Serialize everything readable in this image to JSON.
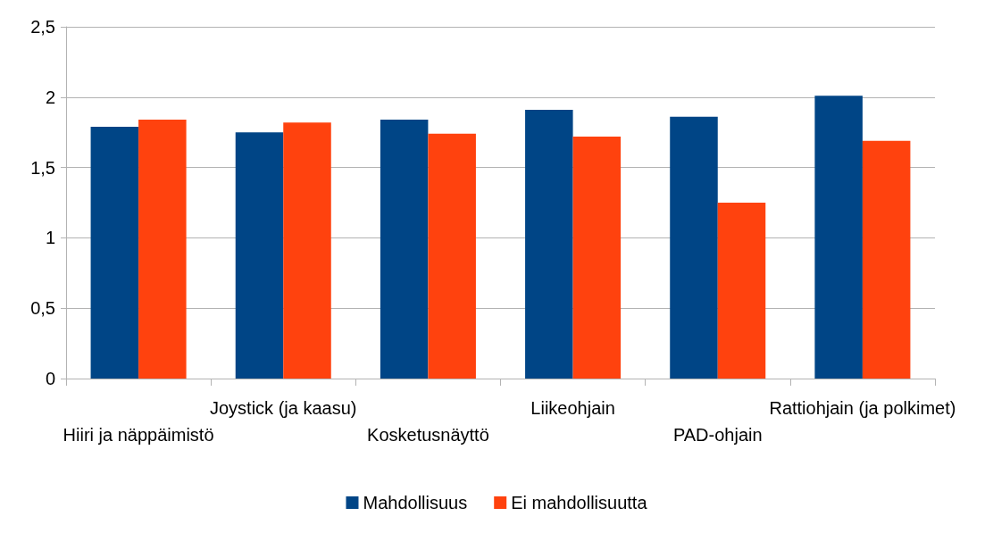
{
  "chart_data": {
    "type": "bar",
    "categories": [
      "Hiiri ja näppäimistö",
      "Joystick (ja kaasu)",
      "Kosketusnäyttö",
      "Liikeohjain",
      "PAD-ohjain",
      "Rattiohjain (ja polkimet)"
    ],
    "series": [
      {
        "name": "Mahdollisuus",
        "color": "#004586",
        "values": [
          1.79,
          1.75,
          1.84,
          1.91,
          1.86,
          2.01
        ]
      },
      {
        "name": "Ei mahdollisuutta",
        "color": "#ff420e",
        "values": [
          1.84,
          1.82,
          1.74,
          1.72,
          1.25,
          1.69
        ]
      }
    ],
    "ylim": [
      0,
      2.5
    ],
    "yticks": [
      0,
      {
        "value": 0.5,
        "label": "0,5"
      },
      1,
      {
        "value": 1.5,
        "label": "1,5"
      },
      2,
      {
        "value": 2.5,
        "label": "2,5"
      }
    ],
    "grid": "y",
    "legend": "bottom"
  }
}
